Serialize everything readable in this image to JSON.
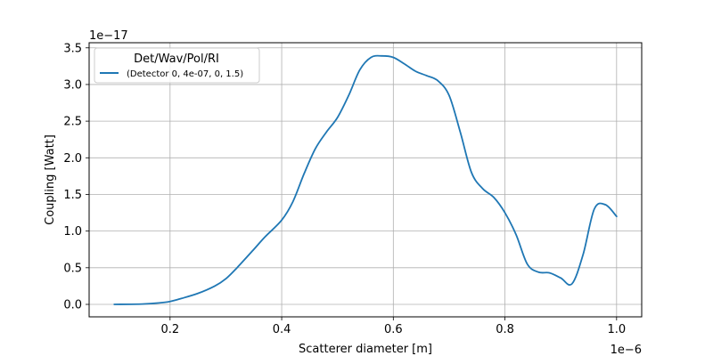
{
  "chart_data": {
    "type": "line",
    "xlabel": "Scatterer diameter [m]",
    "ylabel": "Coupling [Watt]",
    "x_offset_label": "1e−6",
    "y_offset_label": "1e−17",
    "xlim": [
      0.055,
      1.045
    ],
    "ylim": [
      -0.17,
      3.57
    ],
    "x_ticks": [
      0.2,
      0.4,
      0.6,
      0.8,
      1.0
    ],
    "x_tick_labels": [
      "0.2",
      "0.4",
      "0.6",
      "0.8",
      "1.0"
    ],
    "y_ticks": [
      0.0,
      0.5,
      1.0,
      1.5,
      2.0,
      2.5,
      3.0,
      3.5
    ],
    "y_tick_labels": [
      "0.0",
      "0.5",
      "1.0",
      "1.5",
      "2.0",
      "2.5",
      "3.0",
      "3.5"
    ],
    "grid": true,
    "legend_placement": "upper-left",
    "legend_title": "Det/Wav/Pol/RI",
    "series": [
      {
        "name": "(Detector 0, 4e-07, 0, 1.5)",
        "color": "#1f77b4",
        "x": [
          0.1,
          0.15,
          0.18,
          0.2,
          0.22,
          0.25,
          0.28,
          0.3,
          0.32,
          0.35,
          0.37,
          0.4,
          0.42,
          0.44,
          0.46,
          0.48,
          0.5,
          0.52,
          0.54,
          0.56,
          0.58,
          0.6,
          0.62,
          0.64,
          0.66,
          0.68,
          0.7,
          0.72,
          0.74,
          0.76,
          0.78,
          0.8,
          0.82,
          0.84,
          0.86,
          0.88,
          0.9,
          0.92,
          0.94,
          0.96,
          0.98,
          1.0
        ],
        "y": [
          0.0,
          0.005,
          0.02,
          0.04,
          0.08,
          0.15,
          0.25,
          0.35,
          0.5,
          0.75,
          0.92,
          1.15,
          1.4,
          1.78,
          2.12,
          2.35,
          2.55,
          2.85,
          3.2,
          3.37,
          3.39,
          3.37,
          3.28,
          3.18,
          3.12,
          3.05,
          2.85,
          2.35,
          1.8,
          1.58,
          1.46,
          1.25,
          0.95,
          0.55,
          0.44,
          0.43,
          0.36,
          0.28,
          0.68,
          1.3,
          1.36,
          1.2
        ]
      }
    ]
  }
}
